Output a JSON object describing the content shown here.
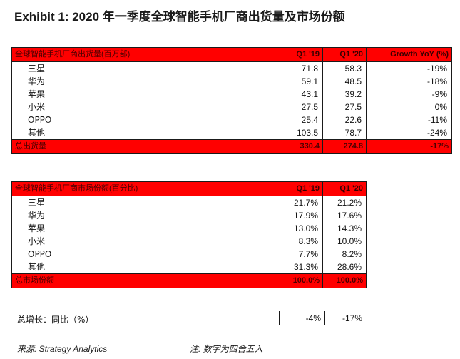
{
  "title": "Exhibit 1:  2020 年一季度全球智能手机厂商出货量及市场份额",
  "shipments": {
    "header": {
      "label": "全球智能手机厂商出货量(百万部)",
      "col1": "Q1 '19",
      "col2": "Q1 '20",
      "col3": "Growth YoY (%)"
    },
    "rows": [
      {
        "name": "三星",
        "q119": "71.8",
        "q120": "58.3",
        "yoy": "-19%"
      },
      {
        "name": "华为",
        "q119": "59.1",
        "q120": "48.5",
        "yoy": "-18%"
      },
      {
        "name": "苹果",
        "q119": "43.1",
        "q120": "39.2",
        "yoy": "-9%"
      },
      {
        "name": "小米",
        "q119": "27.5",
        "q120": "27.5",
        "yoy": "0%"
      },
      {
        "name": "OPPO",
        "q119": "25.4",
        "q120": "22.6",
        "yoy": "-11%"
      },
      {
        "name": "其他",
        "q119": "103.5",
        "q120": "78.7",
        "yoy": "-24%"
      }
    ],
    "total": {
      "label": "总出货量",
      "q119": "330.4",
      "q120": "274.8",
      "yoy": "-17%"
    }
  },
  "share": {
    "header": {
      "label": "全球智能手机厂商市场份额(百分比)",
      "col1": "Q1 '19",
      "col2": "Q1 '20"
    },
    "rows": [
      {
        "name": "三星",
        "q119": "21.7%",
        "q120": "21.2%"
      },
      {
        "name": "华为",
        "q119": "17.9%",
        "q120": "17.6%"
      },
      {
        "name": "苹果",
        "q119": "13.0%",
        "q120": "14.3%"
      },
      {
        "name": "小米",
        "q119": "8.3%",
        "q120": "10.0%"
      },
      {
        "name": "OPPO",
        "q119": "7.7%",
        "q120": "8.2%"
      },
      {
        "name": "其他",
        "q119": "31.3%",
        "q120": "28.6%"
      }
    ],
    "total": {
      "label": "总市场份额",
      "q119": "100.0%",
      "q120": "100.0%"
    }
  },
  "growth": {
    "label": "总增长：同比（%）",
    "q119": "-4%",
    "q120": "-17%"
  },
  "footer": {
    "source": "来源: Strategy Analytics",
    "note": "注:  数字为四舍五入"
  },
  "colors": {
    "header_bg": "#ff0000",
    "border": "#1a1a1a"
  }
}
